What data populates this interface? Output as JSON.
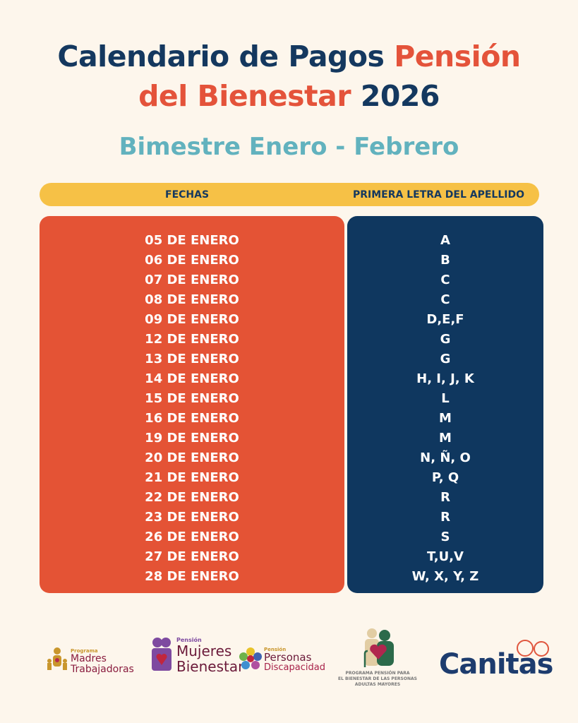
{
  "title": {
    "part1": "Calendario de Pagos ",
    "part2": "Pensión",
    "part3": "del Bienestar",
    "part4": " 2026"
  },
  "subtitle": "Bimestre Enero - Febrero",
  "header": {
    "col1": "FECHAS",
    "col2": "PRIMERA LETRA DEL APELLIDO"
  },
  "rows": [
    {
      "fecha": "05 DE ENERO",
      "letra": "A"
    },
    {
      "fecha": "06 DE ENERO",
      "letra": "B"
    },
    {
      "fecha": "07 DE ENERO",
      "letra": "C"
    },
    {
      "fecha": "08 DE ENERO",
      "letra": "C"
    },
    {
      "fecha": "09 DE ENERO",
      "letra": "D,E,F"
    },
    {
      "fecha": "12 DE ENERO",
      "letra": "G"
    },
    {
      "fecha": "13 DE ENERO",
      "letra": "G"
    },
    {
      "fecha": "14 DE ENERO",
      "letra": "H, I, J, K"
    },
    {
      "fecha": "15 DE ENERO",
      "letra": "L"
    },
    {
      "fecha": "16 DE ENERO",
      "letra": "M"
    },
    {
      "fecha": "19 DE ENERO",
      "letra": "M"
    },
    {
      "fecha": "20 DE ENERO",
      "letra": "N, Ñ, O"
    },
    {
      "fecha": "21 DE ENERO",
      "letra": "P, Q"
    },
    {
      "fecha": "22 DE ENERO",
      "letra": "R"
    },
    {
      "fecha": "23 DE ENERO",
      "letra": "R"
    },
    {
      "fecha": "26 DE ENERO",
      "letra": "S"
    },
    {
      "fecha": "27 DE ENERO",
      "letra": "T,U,V"
    },
    {
      "fecha": "28 DE ENERO",
      "letra": "W, X, Y, Z"
    }
  ],
  "logos": {
    "madres": {
      "small": "Programa",
      "line1": "Madres",
      "line2": "Trabajadoras"
    },
    "mujeres": {
      "small": "Pensión",
      "line1": "Mujeres",
      "line2": "Bienestar"
    },
    "discapacidad": {
      "small": "Pensión",
      "line1": "Personas",
      "line2": "Discapacidad"
    },
    "adultos": {
      "line1": "PROGRAMA PENSIÓN PARA",
      "line2": "EL BIENESTAR DE LAS PERSONAS",
      "line3": "ADULTAS MAYORES"
    },
    "canitas": "Canitas"
  },
  "colors": {
    "navy": "#14385f",
    "orange": "#e4533a",
    "teal": "#62b2be",
    "yellow": "#f6c146",
    "background": "#fdf6ec"
  }
}
